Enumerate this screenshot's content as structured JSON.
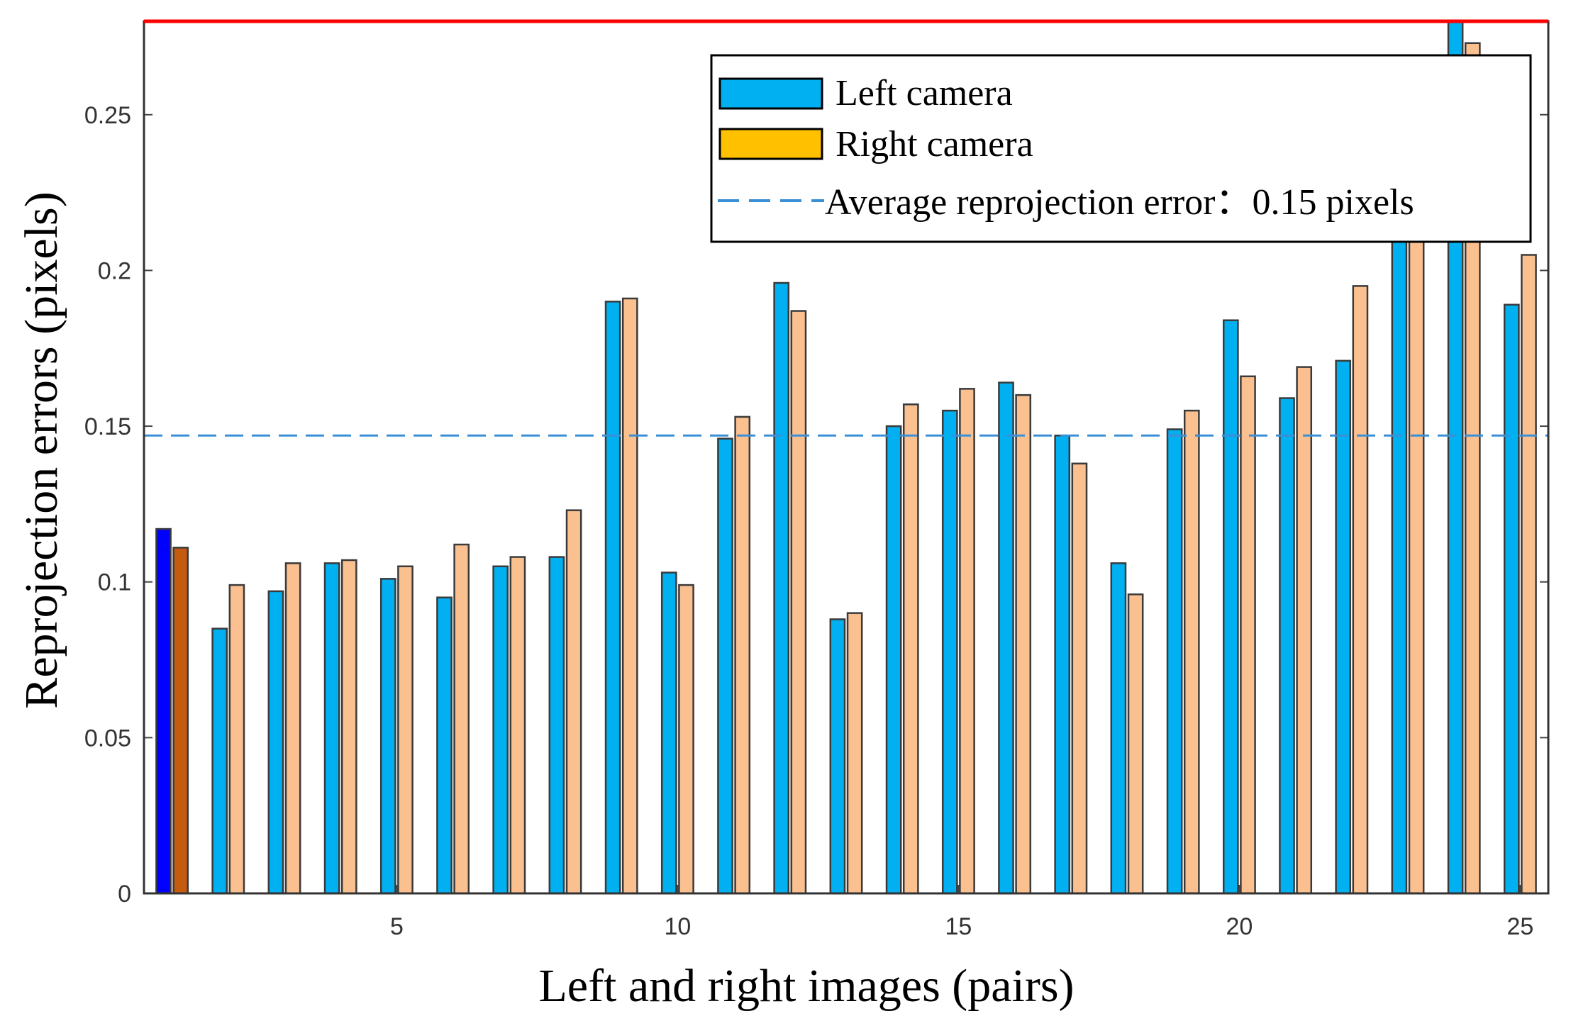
{
  "chart_data": {
    "type": "bar",
    "xlabel": "Left and right images (pairs)",
    "ylabel": "Reprojection errors (pixels)",
    "ylim": [
      0,
      0.28
    ],
    "xlim": [
      0.5,
      25.5
    ],
    "x_ticks": [
      5,
      10,
      15,
      20,
      25
    ],
    "y_ticks": [
      0,
      0.05,
      0.1,
      0.15,
      0.2,
      0.25
    ],
    "y_tick_labels": [
      "0",
      "0.05",
      "0.1",
      "0.15",
      "0.2",
      "0.25"
    ],
    "x_tick_labels": [
      "5",
      "10",
      "15",
      "20",
      "25"
    ],
    "categories": [
      1,
      2,
      3,
      4,
      5,
      6,
      7,
      8,
      9,
      10,
      11,
      12,
      13,
      14,
      15,
      16,
      17,
      18,
      19,
      20,
      21,
      22,
      23,
      24,
      25
    ],
    "series": [
      {
        "name": "Left camera",
        "color": "#00b0f0",
        "highlight_color": "#0000ff",
        "values": [
          0.117,
          0.085,
          0.097,
          0.106,
          0.101,
          0.095,
          0.105,
          0.108,
          0.19,
          0.103,
          0.146,
          0.196,
          0.088,
          0.15,
          0.155,
          0.164,
          0.147,
          0.106,
          0.149,
          0.184,
          0.159,
          0.171,
          0.215,
          0.29,
          0.189
        ]
      },
      {
        "name": "Right camera",
        "color": "#fac090",
        "legend_color": "#ffc000",
        "highlight_color": "#c55a11",
        "values": [
          0.111,
          0.099,
          0.106,
          0.107,
          0.105,
          0.112,
          0.108,
          0.123,
          0.191,
          0.099,
          0.153,
          0.187,
          0.09,
          0.157,
          0.162,
          0.16,
          0.138,
          0.096,
          0.155,
          0.166,
          0.169,
          0.195,
          0.215,
          0.273,
          0.205
        ]
      }
    ],
    "reference_line": {
      "name": "Average reprojection error",
      "label": "Average reprojection error：0.15 pixels",
      "value": 0.147,
      "color": "#3a8fd6"
    },
    "clip_line_color": "#ff0000",
    "legend": {
      "position": "top-right",
      "entries": [
        "Left camera",
        "Right camera",
        "Average reprojection error：0.15 pixels"
      ]
    }
  }
}
